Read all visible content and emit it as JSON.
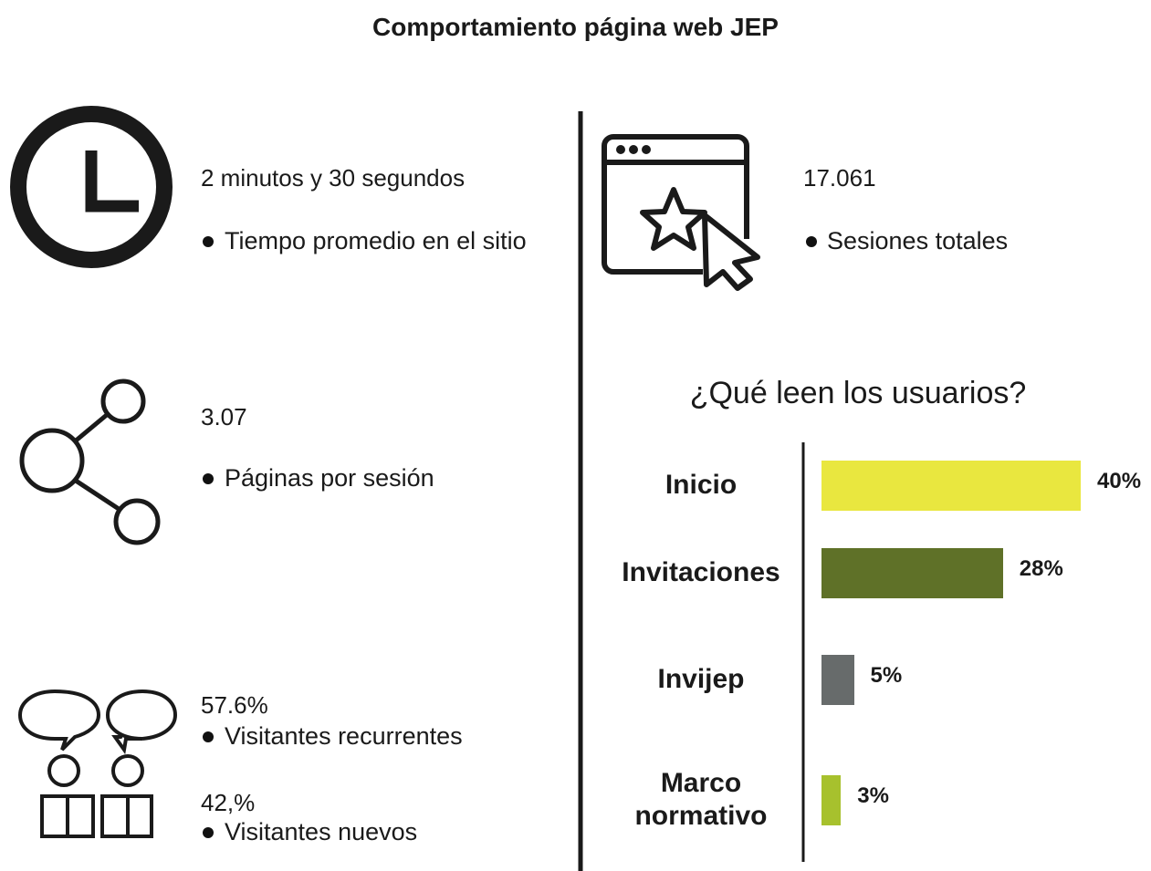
{
  "header": {
    "title": "Comportamiento página web JEP"
  },
  "stats": [
    {
      "value": "2 minutos y 30 segundos",
      "label": "Tiempo promedio en el sitio"
    },
    {
      "value": "17.061",
      "label": "Sesiones totales"
    },
    {
      "value": "3.07",
      "label": "Páginas por sesión"
    },
    {
      "value": "57.6%",
      "label": "Visitantes recurrentes"
    },
    {
      "value": "42,%",
      "label": "Visitantes nuevos"
    }
  ],
  "chart_data": {
    "type": "bar",
    "orientation": "horizontal",
    "title": "¿Qué leen los usuarios?",
    "categories": [
      "Inicio",
      "Invitaciones",
      "Invijep",
      "Marco normativo"
    ],
    "values": [
      40,
      28,
      5,
      3
    ],
    "value_labels": [
      "40%",
      "28%",
      "5%",
      "3%"
    ],
    "colors": [
      "#e9e73f",
      "#5f7128",
      "#676b6b",
      "#a7c12d"
    ]
  }
}
